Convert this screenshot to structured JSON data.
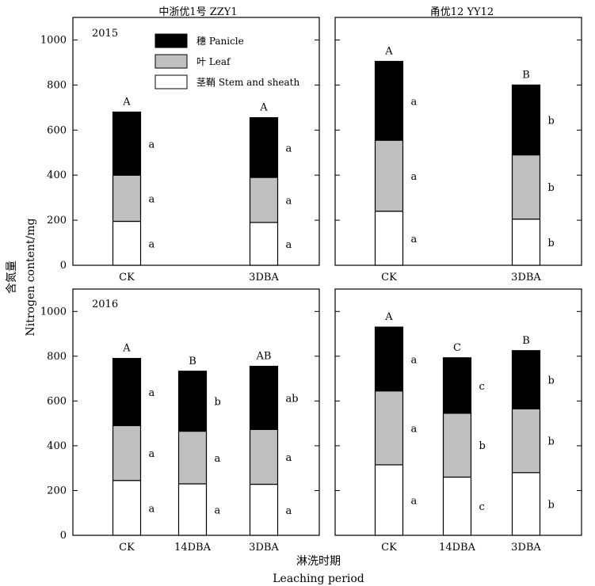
{
  "figure": {
    "y_axis_label_cn": "含氮量",
    "y_axis_label_en": "Nitrogen content/mg",
    "x_axis_label_cn": "淋洗时期",
    "x_axis_label_en": "Leaching period",
    "column_titles": [
      "中浙优1号  ZZY1",
      "甬优12  YY12"
    ],
    "row_year_labels": [
      "2015",
      "2016"
    ],
    "legend": [
      {
        "label": "穗  Panicle",
        "color": "#000000"
      },
      {
        "label": "叶  Leaf",
        "color": "#c0c0c0"
      },
      {
        "label": "茎鞘  Stem and sheath",
        "color": "#ffffff"
      }
    ]
  },
  "chart_data": [
    {
      "type": "bar",
      "stacked": true,
      "year": "2015",
      "cultivar": "中浙优1号  ZZY1",
      "categories": [
        "CK",
        "3DBA"
      ],
      "ylim": [
        0,
        1100
      ],
      "yticks": [
        0,
        200,
        400,
        600,
        800,
        1000
      ],
      "series": [
        {
          "name": "茎鞘  Stem and sheath",
          "values": [
            195,
            190
          ],
          "letters": [
            "a",
            "a"
          ]
        },
        {
          "name": "叶  Leaf",
          "values": [
            205,
            200
          ],
          "letters": [
            "a",
            "a"
          ]
        },
        {
          "name": "穗  Panicle",
          "values": [
            280,
            265
          ],
          "letters": [
            "a",
            "a"
          ]
        }
      ],
      "total_letters": [
        "A",
        "A"
      ],
      "legend": "top-right"
    },
    {
      "type": "bar",
      "stacked": true,
      "year": "2015",
      "cultivar": "甬优12  YY12",
      "categories": [
        "CK",
        "3DBA"
      ],
      "ylim": [
        0,
        1100
      ],
      "yticks": [
        0,
        200,
        400,
        600,
        800,
        1000
      ],
      "series": [
        {
          "name": "茎鞘  Stem and sheath",
          "values": [
            240,
            205
          ],
          "letters": [
            "a",
            "b"
          ]
        },
        {
          "name": "叶  Leaf",
          "values": [
            315,
            285
          ],
          "letters": [
            "a",
            "b"
          ]
        },
        {
          "name": "穗  Panicle",
          "values": [
            350,
            310
          ],
          "letters": [
            "a",
            "b"
          ]
        }
      ],
      "total_letters": [
        "A",
        "B"
      ]
    },
    {
      "type": "bar",
      "stacked": true,
      "year": "2016",
      "cultivar": "中浙优1号  ZZY1",
      "categories": [
        "CK",
        "14DBA",
        "3DBA"
      ],
      "ylim": [
        0,
        1100
      ],
      "yticks": [
        0,
        200,
        400,
        600,
        800,
        1000
      ],
      "series": [
        {
          "name": "茎鞘  Stem and sheath",
          "values": [
            245,
            230,
            228
          ],
          "letters": [
            "a",
            "a",
            "a"
          ]
        },
        {
          "name": "叶  Leaf",
          "values": [
            245,
            235,
            245
          ],
          "letters": [
            "a",
            "a",
            "a"
          ]
        },
        {
          "name": "穗  Panicle",
          "values": [
            300,
            268,
            282
          ],
          "letters": [
            "a",
            "b",
            "ab"
          ]
        }
      ],
      "total_letters": [
        "A",
        "B",
        "AB"
      ]
    },
    {
      "type": "bar",
      "stacked": true,
      "year": "2016",
      "cultivar": "甬优12  YY12",
      "categories": [
        "CK",
        "14DBA",
        "3DBA"
      ],
      "ylim": [
        0,
        1100
      ],
      "yticks": [
        0,
        200,
        400,
        600,
        800,
        1000
      ],
      "series": [
        {
          "name": "茎鞘  Stem and sheath",
          "values": [
            315,
            260,
            280
          ],
          "letters": [
            "a",
            "c",
            "b"
          ]
        },
        {
          "name": "叶  Leaf",
          "values": [
            330,
            285,
            285
          ],
          "letters": [
            "a",
            "b",
            "b"
          ]
        },
        {
          "name": "穗  Panicle",
          "values": [
            285,
            248,
            260
          ],
          "letters": [
            "a",
            "c",
            "b"
          ]
        }
      ],
      "total_letters": [
        "A",
        "C",
        "B"
      ]
    }
  ]
}
